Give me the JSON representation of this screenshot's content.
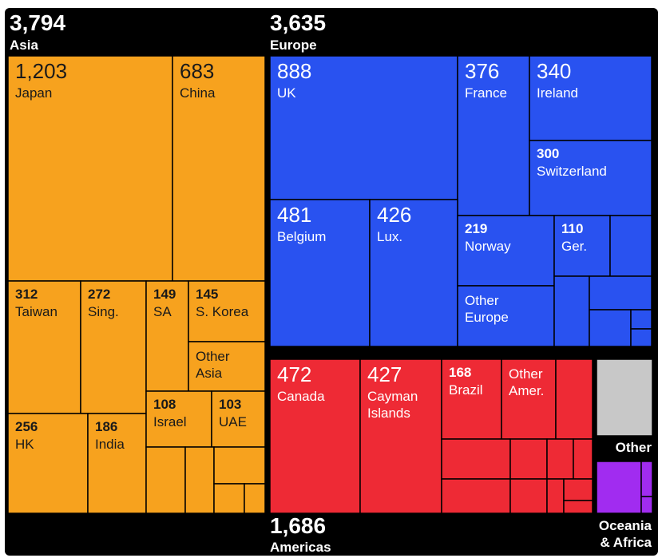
{
  "chart_data": {
    "type": "treemap",
    "units": "",
    "groups": [
      {
        "name": "Asia",
        "total": "3,794",
        "color": "#f7a21e",
        "items": [
          {
            "value": "1,203",
            "label": "Japan"
          },
          {
            "value": "683",
            "label": "China"
          },
          {
            "value": "312",
            "label": "Taiwan"
          },
          {
            "value": "272",
            "label": "Sing."
          },
          {
            "value": "149",
            "label": "SA"
          },
          {
            "value": "145",
            "label": "S. Korea"
          },
          {
            "value": "",
            "label": "Other Asia"
          },
          {
            "value": "256",
            "label": "HK"
          },
          {
            "value": "186",
            "label": "India"
          },
          {
            "value": "108",
            "label": "Israel"
          },
          {
            "value": "103",
            "label": "UAE"
          }
        ]
      },
      {
        "name": "Europe",
        "total": "3,635",
        "color": "#2952f0",
        "items": [
          {
            "value": "888",
            "label": "UK"
          },
          {
            "value": "376",
            "label": "France"
          },
          {
            "value": "340",
            "label": "Ireland"
          },
          {
            "value": "300",
            "label": "Switzerland"
          },
          {
            "value": "481",
            "label": "Belgium"
          },
          {
            "value": "426",
            "label": "Lux."
          },
          {
            "value": "219",
            "label": "Norway"
          },
          {
            "value": "110",
            "label": "Ger."
          },
          {
            "value": "",
            "label": "Other Europe"
          }
        ]
      },
      {
        "name": "Americas",
        "total": "1,686",
        "color": "#ee2a35",
        "items": [
          {
            "value": "472",
            "label": "Canada"
          },
          {
            "value": "427",
            "label": "Cayman Islands"
          },
          {
            "value": "168",
            "label": "Brazil"
          },
          {
            "value": "",
            "label": "Other Amer."
          }
        ]
      },
      {
        "name": "Other",
        "total": "",
        "color": "#c8c8c8",
        "items": []
      },
      {
        "name": "Oceania & Africa",
        "total": "",
        "color": "#a12cf0",
        "items": []
      }
    ]
  }
}
